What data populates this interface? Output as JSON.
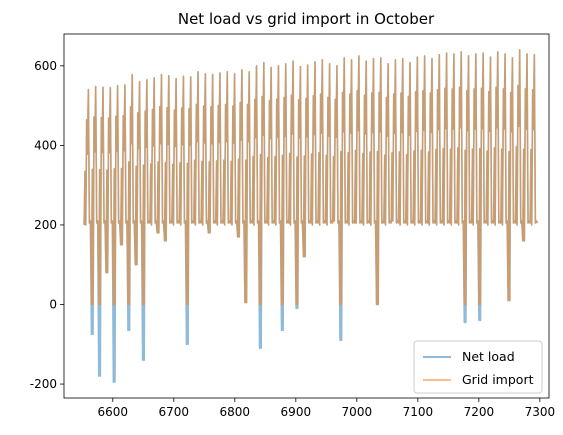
{
  "chart_data": {
    "type": "line",
    "title": "Net load vs grid import in October",
    "xlabel": "",
    "ylabel": "",
    "xlim": [
      6520,
      7315
    ],
    "ylim": [
      -235,
      680
    ],
    "x_ticks": [
      6600,
      6700,
      6800,
      6900,
      7000,
      7100,
      7200,
      7300
    ],
    "y_ticks": [
      -200,
      0,
      200,
      400,
      600
    ],
    "grid": false,
    "legend_position": "lower-right",
    "x_start": 6553,
    "x_end": 7296,
    "series": [
      {
        "name": "Net load",
        "color": "#1f77b4",
        "alpha": 0.5,
        "daily_peak": [
          540,
          548,
          546,
          545,
          550,
          552,
          578,
          560,
          565,
          570,
          578,
          575,
          568,
          574,
          572,
          585,
          580,
          578,
          582,
          585,
          580,
          590,
          585,
          600,
          608,
          596,
          600,
          605,
          612,
          598,
          602,
          610,
          615,
          605,
          600,
          620,
          615,
          625,
          612,
          618,
          620,
          605,
          615,
          618,
          608,
          622,
          625,
          618,
          628,
          632,
          630,
          635,
          625,
          630,
          632,
          622,
          635,
          630,
          620,
          640,
          630,
          628
        ],
        "daily_min": [
          200,
          -75,
          -180,
          80,
          -195,
          150,
          -65,
          100,
          -140,
          200,
          180,
          160,
          200,
          200,
          -100,
          200,
          200,
          180,
          200,
          200,
          200,
          170,
          5,
          200,
          -110,
          200,
          200,
          -65,
          200,
          -10,
          120,
          200,
          200,
          200,
          210,
          -90,
          200,
          205,
          200,
          200,
          0,
          200,
          210,
          200,
          200,
          200,
          200,
          200,
          200,
          200,
          200,
          200,
          -45,
          200,
          -40,
          200,
          200,
          200,
          10,
          200,
          160,
          200
        ]
      },
      {
        "name": "Grid import",
        "color": "#ff7f0e",
        "alpha": 0.5,
        "daily_peak": [
          540,
          548,
          546,
          545,
          550,
          552,
          578,
          560,
          565,
          570,
          578,
          575,
          568,
          574,
          572,
          585,
          580,
          578,
          582,
          585,
          580,
          590,
          585,
          600,
          608,
          596,
          600,
          605,
          612,
          598,
          602,
          610,
          615,
          605,
          600,
          620,
          615,
          625,
          612,
          618,
          620,
          605,
          615,
          618,
          608,
          622,
          625,
          618,
          628,
          632,
          630,
          635,
          625,
          630,
          632,
          622,
          635,
          630,
          620,
          640,
          630,
          628
        ],
        "daily_min": [
          200,
          0,
          0,
          80,
          0,
          150,
          0,
          100,
          0,
          200,
          180,
          160,
          200,
          200,
          0,
          200,
          200,
          180,
          200,
          200,
          200,
          170,
          5,
          200,
          0,
          200,
          200,
          0,
          200,
          0,
          120,
          200,
          200,
          200,
          210,
          0,
          200,
          205,
          200,
          200,
          0,
          200,
          210,
          200,
          200,
          200,
          200,
          200,
          200,
          200,
          200,
          200,
          0,
          200,
          0,
          200,
          200,
          200,
          10,
          200,
          160,
          200
        ]
      }
    ]
  }
}
